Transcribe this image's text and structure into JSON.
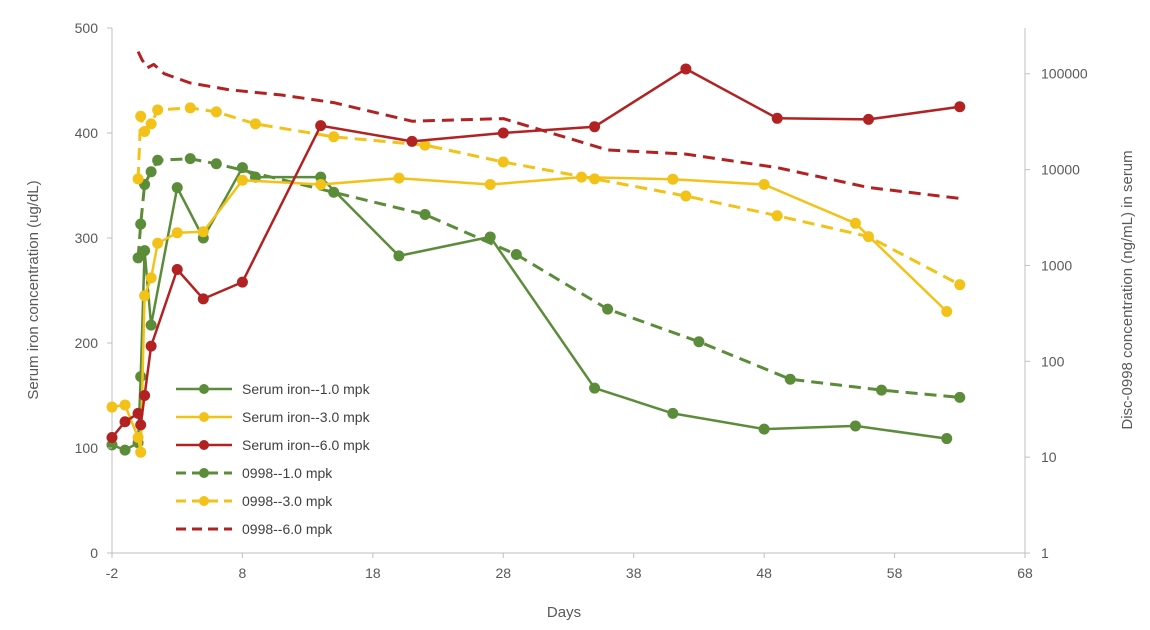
{
  "chart_data": {
    "type": "line",
    "xlabel": "Days",
    "ylabel": "Serum iron concentration (ug/dL)",
    "y2label": "Disc-0998 concentration (ng/mL) in serum",
    "xlim": [
      -2,
      68
    ],
    "ylim": [
      0,
      500
    ],
    "y2lim": [
      1,
      300000
    ],
    "y2scale": "log",
    "xticks": [
      "-2",
      "8",
      "18",
      "28",
      "38",
      "48",
      "58",
      "68"
    ],
    "yticks": [
      "0",
      "100",
      "200",
      "300",
      "400",
      "500"
    ],
    "y2ticks": [
      "1",
      "10",
      "100",
      "1000",
      "10000",
      "100000"
    ],
    "legend_position": "lower-left",
    "colors": {
      "green": "#5b8c3a",
      "yellow": "#f2c218",
      "red": "#b22222"
    },
    "series": [
      {
        "name": "Serum iron--1.0 mpk",
        "axis": "left",
        "style": "solid",
        "markers": true,
        "color": "#5b8c3a",
        "x": [
          -2,
          -1,
          0,
          0.2,
          0.5,
          1,
          3,
          5,
          8,
          9,
          14,
          20,
          27,
          35,
          41,
          48,
          55,
          62
        ],
        "y": [
          103,
          98,
          105,
          168,
          288,
          217,
          348,
          300,
          367,
          358,
          358,
          283,
          301,
          157,
          133,
          118,
          121,
          109
        ]
      },
      {
        "name": "Serum iron--3.0 mpk",
        "axis": "left",
        "style": "solid",
        "markers": true,
        "color": "#f2c218",
        "x": [
          -2,
          -1,
          0,
          0.2,
          0.5,
          1,
          1.5,
          3,
          5,
          8,
          14,
          20,
          27,
          34,
          41,
          48,
          55,
          62
        ],
        "y": [
          139,
          141,
          110,
          96,
          245,
          262,
          295,
          305,
          306,
          355,
          351,
          357,
          351,
          358,
          356,
          351,
          314,
          230
        ]
      },
      {
        "name": "Serum iron--6.0 mpk",
        "axis": "left",
        "style": "solid",
        "markers": true,
        "color": "#b22222",
        "x": [
          -2,
          -1,
          0,
          0.2,
          0.5,
          1,
          3,
          5,
          8,
          14,
          21,
          28,
          35,
          42,
          49,
          56,
          63
        ],
        "y": [
          110,
          125,
          133,
          122,
          150,
          197,
          270,
          242,
          258,
          407,
          392,
          400,
          406,
          461,
          414,
          413,
          425
        ]
      },
      {
        "name": "0998--1.0 mpk",
        "axis": "right",
        "style": "dashed",
        "markers": true,
        "color": "#5b8c3a",
        "x": [
          0,
          0.2,
          0.5,
          1,
          1.5,
          4,
          6,
          15,
          22,
          29,
          36,
          43,
          50,
          57,
          63
        ],
        "y": [
          1200,
          2700,
          7000,
          9500,
          12500,
          13000,
          11500,
          5800,
          3400,
          1300,
          350,
          160,
          65,
          50,
          42
        ]
      },
      {
        "name": "0998--3.0 mpk",
        "axis": "right",
        "style": "dashed",
        "markers": true,
        "color": "#f2c218",
        "x": [
          0,
          0.2,
          0.5,
          1,
          1.5,
          4,
          6,
          9,
          15,
          22,
          28,
          35,
          42,
          49,
          56,
          63
        ],
        "y": [
          8000,
          36000,
          25000,
          30000,
          42000,
          44000,
          40000,
          30000,
          22000,
          18000,
          12000,
          8000,
          5300,
          3300,
          2000,
          630
        ]
      },
      {
        "name": "0998--6.0 mpk",
        "axis": "right",
        "style": "dashed",
        "markers": false,
        "color": "#b22222",
        "x": [
          0,
          0.3,
          0.7,
          1.2,
          2,
          4,
          7,
          11,
          15,
          21,
          28,
          36,
          42,
          49,
          56,
          63
        ],
        "y": [
          170000,
          140000,
          115000,
          125000,
          100000,
          80000,
          68000,
          60000,
          50000,
          32000,
          34000,
          16000,
          14500,
          10500,
          6500,
          5000
        ]
      }
    ]
  }
}
